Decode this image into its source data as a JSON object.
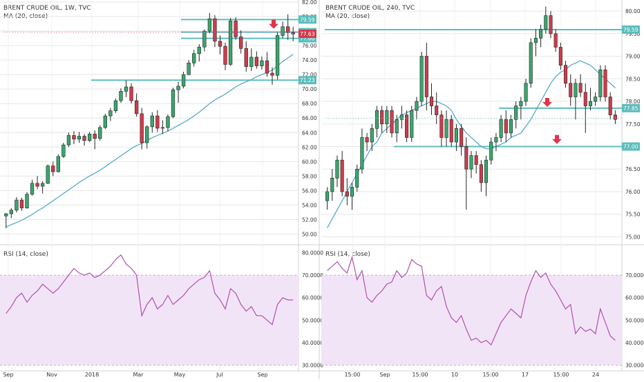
{
  "colors": {
    "up": "#3aa76d",
    "down": "#d03b4b",
    "ma": "#4aa3c9",
    "level": "#5bbdbd",
    "rsi": "#b04fb0",
    "rsi_band": "#f2e4f7",
    "arrow": "#e0364a",
    "grid": "#e6e6e6",
    "text": "#333333"
  },
  "chart_data": [
    {
      "type": "candlestick",
      "panel": "left",
      "title": "BRENT CRUDE OIL, 1W, TVC",
      "indicator_label": "MA (20, close)",
      "ylim": [
        49,
        82
      ],
      "yticks": [
        "50.00",
        "52.00",
        "54.00",
        "56.00",
        "58.00",
        "60.00",
        "62.00",
        "64.00",
        "66.00",
        "68.00",
        "70.00",
        "72.00",
        "74.00",
        "76.00",
        "78.00",
        "80.00",
        "82.00"
      ],
      "xticks": [
        "Sep",
        "Nov",
        "2018",
        "Mar",
        "May",
        "Jul",
        "Sep"
      ],
      "levels": [
        "79.59",
        "77.85",
        "77.00",
        "71.23"
      ],
      "price_tag": "77.63",
      "ohlc": [
        [
          52.5,
          52.9,
          50.8,
          52.8
        ],
        [
          52.8,
          53.6,
          52.2,
          53.3
        ],
        [
          53.3,
          55.1,
          53.0,
          54.7
        ],
        [
          54.7,
          55.0,
          53.2,
          53.6
        ],
        [
          53.6,
          55.8,
          53.5,
          55.5
        ],
        [
          55.5,
          57.5,
          55.3,
          57.0
        ],
        [
          57.0,
          58.0,
          56.2,
          56.6
        ],
        [
          56.6,
          57.3,
          55.6,
          57.0
        ],
        [
          57.0,
          59.6,
          56.9,
          59.4
        ],
        [
          59.4,
          60.0,
          58.0,
          58.6
        ],
        [
          58.6,
          61.0,
          58.5,
          60.7
        ],
        [
          60.7,
          62.6,
          60.5,
          62.3
        ],
        [
          62.3,
          64.0,
          62.0,
          63.6
        ],
        [
          63.6,
          64.2,
          62.4,
          63.1
        ],
        [
          63.1,
          64.1,
          62.6,
          63.5
        ],
        [
          63.5,
          63.8,
          62.2,
          62.9
        ],
        [
          62.9,
          64.1,
          62.7,
          63.8
        ],
        [
          63.8,
          64.3,
          61.7,
          63.2
        ],
        [
          63.2,
          65.0,
          62.9,
          64.7
        ],
        [
          64.7,
          66.6,
          64.5,
          66.3
        ],
        [
          66.3,
          67.4,
          65.6,
          67.0
        ],
        [
          67.0,
          68.7,
          66.7,
          68.4
        ],
        [
          68.4,
          70.1,
          68.1,
          69.7
        ],
        [
          69.7,
          71.2,
          68.9,
          70.3
        ],
        [
          70.3,
          70.8,
          68.0,
          68.4
        ],
        [
          68.4,
          69.4,
          66.2,
          66.6
        ],
        [
          66.6,
          67.4,
          61.7,
          62.6
        ],
        [
          62.6,
          65.0,
          61.8,
          64.8
        ],
        [
          64.8,
          66.8,
          64.0,
          66.3
        ],
        [
          66.3,
          67.1,
          64.1,
          64.6
        ],
        [
          64.6,
          65.7,
          63.8,
          64.7
        ],
        [
          64.7,
          66.5,
          64.2,
          66.2
        ],
        [
          66.2,
          70.2,
          66.0,
          69.9
        ],
        [
          69.9,
          71.0,
          68.1,
          70.4
        ],
        [
          70.4,
          72.4,
          70.1,
          72.0
        ],
        [
          72.0,
          74.0,
          71.9,
          73.6
        ],
        [
          73.6,
          75.4,
          73.1,
          74.9
        ],
        [
          74.9,
          76.2,
          73.8,
          75.8
        ],
        [
          75.8,
          78.2,
          75.2,
          78.0
        ],
        [
          78.0,
          80.5,
          77.7,
          79.7
        ],
        [
          79.7,
          80.2,
          75.8,
          76.6
        ],
        [
          76.6,
          77.4,
          74.8,
          75.9
        ],
        [
          75.9,
          76.4,
          72.6,
          73.4
        ],
        [
          73.4,
          79.8,
          73.2,
          79.4
        ],
        [
          79.4,
          79.9,
          76.8,
          77.2
        ],
        [
          77.2,
          78.1,
          74.9,
          75.6
        ],
        [
          75.6,
          76.6,
          72.4,
          73.1
        ],
        [
          73.1,
          75.6,
          72.5,
          74.4
        ],
        [
          74.4,
          75.2,
          72.8,
          73.2
        ],
        [
          73.2,
          74.5,
          72.7,
          73.9
        ],
        [
          73.9,
          75.1,
          71.7,
          72.2
        ],
        [
          72.2,
          73.0,
          70.6,
          71.9
        ],
        [
          71.9,
          77.8,
          71.3,
          77.4
        ],
        [
          77.4,
          79.3,
          77.0,
          78.6
        ],
        [
          78.6,
          80.3,
          76.8,
          77.8
        ],
        [
          77.8,
          78.6,
          76.6,
          77.6
        ]
      ],
      "ma": [
        51.0,
        51.3,
        51.6,
        51.9,
        52.3,
        52.7,
        53.2,
        53.6,
        54.1,
        54.6,
        55.1,
        55.6,
        56.1,
        56.6,
        57.1,
        57.6,
        58.0,
        58.4,
        58.8,
        59.3,
        59.8,
        60.3,
        60.8,
        61.3,
        61.8,
        62.2,
        62.5,
        62.9,
        63.3,
        63.6,
        63.9,
        64.2,
        64.6,
        65.0,
        65.4,
        65.8,
        66.3,
        66.8,
        67.4,
        68.0,
        68.5,
        68.9,
        69.3,
        69.8,
        70.3,
        70.7,
        71.0,
        71.3,
        71.7,
        72.0,
        72.3,
        72.6,
        73.2,
        73.8,
        74.3,
        74.8
      ],
      "rsi": {
        "label": "RSI (14, close)",
        "ylim": [
          28,
          82
        ],
        "band": [
          30,
          70
        ],
        "yticks": [
          "30.0000",
          "40.0000",
          "50.0000",
          "60.0000",
          "70.0000",
          "80.0000"
        ],
        "values": [
          53,
          56,
          60,
          62,
          58,
          61,
          63,
          66,
          64,
          62,
          64,
          67,
          70,
          73,
          71,
          70,
          71,
          69,
          70,
          72,
          74,
          77,
          79,
          75,
          73,
          70,
          52,
          57,
          60,
          55,
          57,
          61,
          57,
          59,
          61,
          64,
          66,
          68,
          69,
          72,
          62,
          59,
          55,
          64,
          62,
          57,
          54,
          56,
          52,
          52,
          50,
          48,
          57,
          60,
          59,
          59
        ]
      }
    },
    {
      "type": "candlestick",
      "panel": "right",
      "title": "BRENT CRUDE OIL, 240, TVC",
      "indicator_label": "MA (20, close)",
      "ylim": [
        74.9,
        80.2
      ],
      "yticks": [
        "75.00",
        "75.50",
        "76.00",
        "76.50",
        "77.00",
        "77.50",
        "78.00",
        "78.50",
        "79.00",
        "79.50",
        "80.00"
      ],
      "xticks": [
        "15:00",
        "Sep",
        "15:00",
        "10",
        "15:00",
        "17",
        "15:00",
        "24"
      ],
      "levels": [
        "79.59",
        "77.85",
        "77.00"
      ],
      "ohlc": [
        [
          75.8,
          76.1,
          75.6,
          76.0
        ],
        [
          76.0,
          76.5,
          75.8,
          76.3
        ],
        [
          76.3,
          76.8,
          76.1,
          76.7
        ],
        [
          76.7,
          76.9,
          75.9,
          76.0
        ],
        [
          76.0,
          76.3,
          75.7,
          75.9
        ],
        [
          75.9,
          76.2,
          75.6,
          76.1
        ],
        [
          76.1,
          76.6,
          76.0,
          76.5
        ],
        [
          76.5,
          77.4,
          76.4,
          77.2
        ],
        [
          77.2,
          77.3,
          76.9,
          77.1
        ],
        [
          77.1,
          77.5,
          76.9,
          77.4
        ],
        [
          77.4,
          77.9,
          77.2,
          77.8
        ],
        [
          77.8,
          77.9,
          77.3,
          77.5
        ],
        [
          77.5,
          77.9,
          77.3,
          77.8
        ],
        [
          77.8,
          77.9,
          77.2,
          77.3
        ],
        [
          77.3,
          77.7,
          77.1,
          77.6
        ],
        [
          77.6,
          77.9,
          77.4,
          77.7
        ],
        [
          77.7,
          77.8,
          77.1,
          77.2
        ],
        [
          77.2,
          77.9,
          77.1,
          77.8
        ],
        [
          77.8,
          78.1,
          77.6,
          78.0
        ],
        [
          78.0,
          79.1,
          77.9,
          79.0
        ],
        [
          79.0,
          79.3,
          77.8,
          78.1
        ],
        [
          78.1,
          78.4,
          77.7,
          77.9
        ],
        [
          77.9,
          78.2,
          77.5,
          77.7
        ],
        [
          77.7,
          77.8,
          77.0,
          77.2
        ],
        [
          77.2,
          77.8,
          77.0,
          77.6
        ],
        [
          77.6,
          77.7,
          77.0,
          77.1
        ],
        [
          77.1,
          77.5,
          76.9,
          77.4
        ],
        [
          77.4,
          77.5,
          76.8,
          77.0
        ],
        [
          77.0,
          77.2,
          75.6,
          76.5
        ],
        [
          76.5,
          76.9,
          76.3,
          76.8
        ],
        [
          76.8,
          76.9,
          76.4,
          76.6
        ],
        [
          76.6,
          76.7,
          76.0,
          76.2
        ],
        [
          76.2,
          76.8,
          75.9,
          76.7
        ],
        [
          76.7,
          77.2,
          76.6,
          77.1
        ],
        [
          77.1,
          77.3,
          76.9,
          77.2
        ],
        [
          77.2,
          77.7,
          77.1,
          77.6
        ],
        [
          77.6,
          77.8,
          77.1,
          77.3
        ],
        [
          77.3,
          77.7,
          77.2,
          77.6
        ],
        [
          77.6,
          78.0,
          77.4,
          77.9
        ],
        [
          77.9,
          78.1,
          77.6,
          78.0
        ],
        [
          78.0,
          78.5,
          77.9,
          78.4
        ],
        [
          78.4,
          79.4,
          78.3,
          79.3
        ],
        [
          79.3,
          79.6,
          79.0,
          79.4
        ],
        [
          79.4,
          79.7,
          79.2,
          79.6
        ],
        [
          79.6,
          80.1,
          79.5,
          79.9
        ],
        [
          79.9,
          80.0,
          79.4,
          79.5
        ],
        [
          79.5,
          79.6,
          79.1,
          79.2
        ],
        [
          79.2,
          79.3,
          78.7,
          78.8
        ],
        [
          78.8,
          78.9,
          78.3,
          78.4
        ],
        [
          78.4,
          78.6,
          77.9,
          78.1
        ],
        [
          78.1,
          78.5,
          77.6,
          78.4
        ],
        [
          78.4,
          78.6,
          78.1,
          78.2
        ],
        [
          78.2,
          78.4,
          77.3,
          77.9
        ],
        [
          77.9,
          78.3,
          77.8,
          78.0
        ],
        [
          78.0,
          78.2,
          77.9,
          78.1
        ],
        [
          78.1,
          78.8,
          78.0,
          78.7
        ],
        [
          78.7,
          78.8,
          78.0,
          78.1
        ],
        [
          78.1,
          78.2,
          77.6,
          77.7
        ],
        [
          77.7,
          77.8,
          77.5,
          77.6
        ]
      ],
      "ma": [
        75.2,
        75.4,
        75.6,
        75.8,
        76.0,
        76.2,
        76.4,
        76.6,
        76.8,
        77.0,
        77.1,
        77.3,
        77.4,
        77.5,
        77.6,
        77.7,
        77.75,
        77.8,
        77.85,
        77.9,
        77.95,
        78.0,
        78.0,
        77.95,
        77.9,
        77.8,
        77.6,
        77.45,
        77.3,
        77.2,
        77.1,
        77.0,
        76.95,
        76.95,
        77.0,
        77.05,
        77.1,
        77.2,
        77.25,
        77.3,
        77.45,
        77.6,
        77.8,
        78.0,
        78.2,
        78.4,
        78.55,
        78.65,
        78.7,
        78.8,
        78.85,
        78.9,
        78.85,
        78.8,
        78.7,
        78.6,
        78.5,
        78.4,
        78.3
      ],
      "rsi": {
        "label": "RSI (14, close)",
        "ylim": [
          28,
          82
        ],
        "band": [
          30,
          70
        ],
        "yticks": [
          "30.0000",
          "40.0000",
          "50.0000",
          "60.0000",
          "70.0000"
        ],
        "values": [
          72,
          74,
          76,
          73,
          71,
          78,
          68,
          72,
          60,
          58,
          61,
          63,
          66,
          67,
          72,
          69,
          71,
          77,
          75,
          74,
          61,
          59,
          63,
          65,
          56,
          51,
          49,
          52,
          46,
          41,
          42,
          40,
          41,
          39,
          44,
          49,
          52,
          55,
          53,
          51,
          61,
          67,
          72,
          69,
          71,
          66,
          63,
          59,
          55,
          57,
          44,
          47,
          45,
          46,
          44,
          55,
          49,
          43,
          41
        ]
      }
    }
  ]
}
